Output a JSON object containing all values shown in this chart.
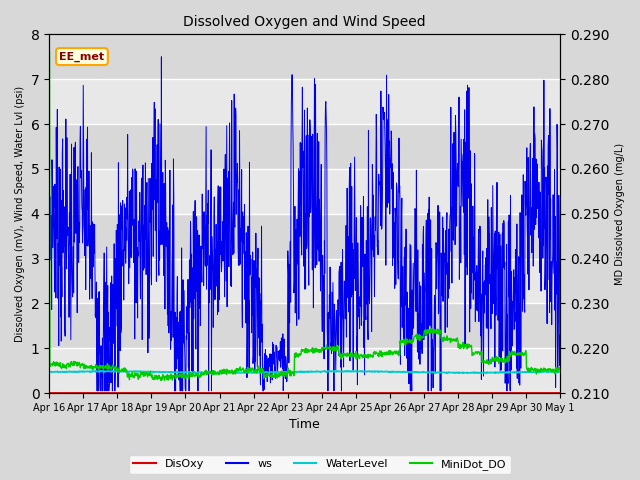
{
  "title": "Dissolved Oxygen and Wind Speed",
  "ylabel_left": "Dissolved Oxygen (mV), Wind Speed, Water Lvl (psi)",
  "ylabel_right": "MD Dissolved Oxygen (mg/L)",
  "xlabel": "Time",
  "ylim_left": [
    0.0,
    8.0
  ],
  "ylim_right": [
    0.21,
    0.29
  ],
  "yticks_left": [
    0.0,
    1.0,
    2.0,
    3.0,
    4.0,
    5.0,
    6.0,
    7.0,
    8.0
  ],
  "yticks_right": [
    0.21,
    0.22,
    0.23,
    0.24,
    0.25,
    0.26,
    0.27,
    0.28,
    0.29
  ],
  "annotation_text": "EE_met",
  "fig_bg": "#d8d8d8",
  "plot_bg": "#e8e8e8",
  "stripe_colors": [
    "#e0e0e0",
    "#d0d0d0"
  ],
  "grid_color": "#ffffff",
  "colors": {
    "DisOxy": "#dd0000",
    "ws": "#0000ee",
    "WaterLevel": "#00cccc",
    "MiniDot_DO": "#00cc00"
  },
  "legend_labels": [
    "DisOxy",
    "ws",
    "WaterLevel",
    "MiniDot_DO"
  ]
}
